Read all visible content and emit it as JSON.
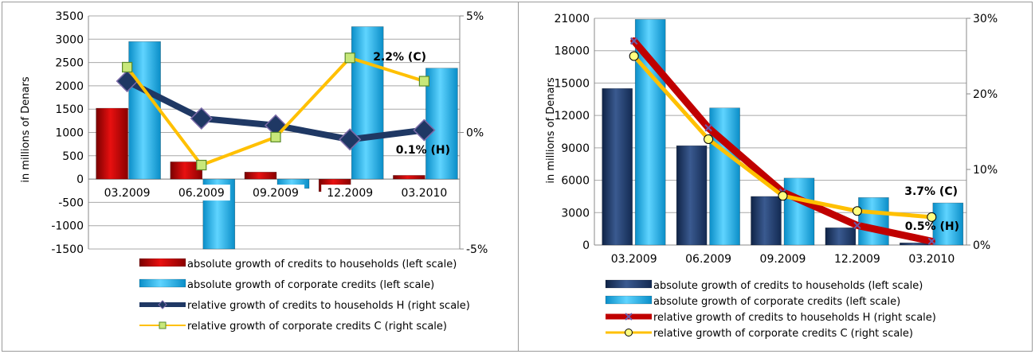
{
  "colors": {
    "household_bar_left": "#c00000",
    "corporate_bar": "#00b0f0",
    "household_bar_right": "#1f3864",
    "household_line_left": "#1f3864",
    "corporate_line": "#ffc000",
    "household_line_right": "#c00000"
  },
  "chart_data": [
    {
      "type": "bar",
      "ylabel": "in millions of Denars",
      "categories": [
        "03.2009",
        "06.2009",
        "09.2009",
        "12.2009",
        "03.2010"
      ],
      "ylim": [
        -1500,
        3500
      ],
      "yticks": [
        "3500",
        "3000",
        "2500",
        "2000",
        "1500",
        "1000",
        "500",
        "0",
        "-500",
        "-1000",
        "-1500"
      ],
      "y2lim": [
        -5,
        5
      ],
      "y2ticks": [
        "5%",
        "0%",
        "-5%"
      ],
      "grid": true,
      "legend_position": "bottom",
      "series": [
        {
          "name": "absolute growth of credits to households (left scale)",
          "type": "bar",
          "axis": "left",
          "values": [
            1520,
            370,
            150,
            -270,
            80
          ]
        },
        {
          "name": "absolute growth of corporate credits (left scale)",
          "type": "bar",
          "axis": "left",
          "values": [
            2950,
            -1500,
            -200,
            3270,
            2380
          ]
        },
        {
          "name": "relative growth of credits to households H (right scale)",
          "type": "line",
          "axis": "right",
          "values": [
            2.2,
            0.6,
            0.3,
            -0.3,
            0.1
          ]
        },
        {
          "name": "relative growth of corporate credits C (right scale)",
          "type": "line",
          "axis": "right",
          "values": [
            2.8,
            -1.4,
            -0.2,
            3.2,
            2.2
          ]
        }
      ],
      "annotations": [
        "2.2% (C)",
        "0.1% (H)"
      ]
    },
    {
      "type": "bar",
      "ylabel": "in millions of Denars",
      "categories": [
        "03.2009",
        "06.2009",
        "09.2009",
        "12.2009",
        "03.2010"
      ],
      "ylim": [
        0,
        21000
      ],
      "yticks": [
        "21000",
        "18000",
        "15000",
        "12000",
        "9000",
        "6000",
        "3000",
        "0"
      ],
      "y2lim": [
        0,
        30
      ],
      "y2ticks": [
        "30%",
        "20%",
        "10%",
        "0%"
      ],
      "grid": true,
      "legend_position": "bottom",
      "series": [
        {
          "name": "absolute growth of credits to households (left scale)",
          "type": "bar",
          "axis": "left",
          "values": [
            14500,
            9200,
            4500,
            1600,
            200
          ]
        },
        {
          "name": "absolute growth of corporate credits (left scale)",
          "type": "bar",
          "axis": "left",
          "values": [
            20900,
            12700,
            6200,
            4400,
            3900
          ]
        },
        {
          "name": "relative growth of credits to households H (right scale)",
          "type": "line",
          "axis": "right",
          "values": [
            27.0,
            15.5,
            7.0,
            2.6,
            0.5
          ]
        },
        {
          "name": "relative growth of corporate credits C (right scale)",
          "type": "line",
          "axis": "right",
          "values": [
            25.0,
            14.0,
            6.5,
            4.5,
            3.7
          ]
        }
      ],
      "annotations": [
        "3.7% (C)",
        "0.5% (H)"
      ]
    }
  ]
}
